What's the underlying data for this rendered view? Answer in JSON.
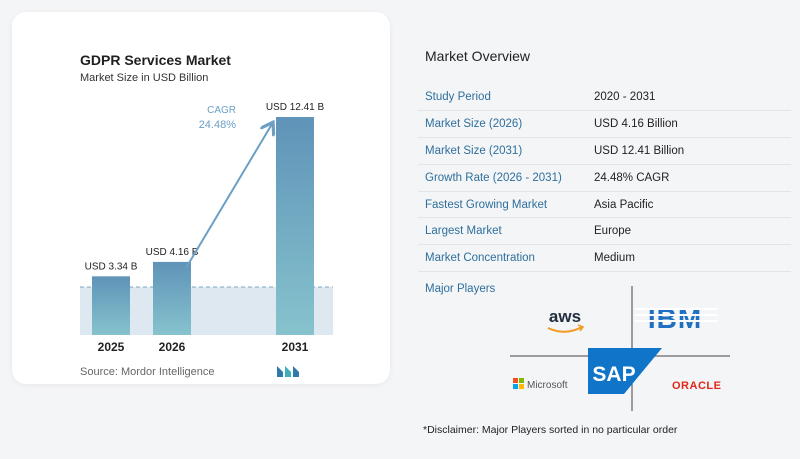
{
  "chart_data": {
    "type": "bar",
    "title": "GDPR Services Market",
    "subtitle": "Market Size in USD Billion",
    "categories": [
      "2025",
      "2026",
      "2031"
    ],
    "values": [
      3.34,
      4.16,
      12.41
    ],
    "value_labels": [
      "USD 3.34 B",
      "USD 4.16 B",
      "USD 12.41 B"
    ],
    "cagr_label": "CAGR",
    "cagr_value": "24.48%",
    "ylim": [
      0,
      12.41
    ],
    "grid": false,
    "colors": {
      "bar_top": "#5f93b8",
      "bar_bottom": "#86c3cd",
      "arrow": "#6c9fc4",
      "band": "#dde8f1",
      "dashed": "#7fa4c2",
      "cagr_text": "#6c9fc4"
    }
  },
  "source": "Source:  Mordor Intelligence",
  "source_logo_icon": "mordor-intelligence-logo",
  "overview": {
    "title": "Market Overview",
    "rows": [
      {
        "label": "Study Period",
        "value": "2020 - 2031"
      },
      {
        "label": "Market Size (2026)",
        "value": "USD 4.16 Billion"
      },
      {
        "label": "Market Size (2031)",
        "value": "USD 12.41 Billion"
      },
      {
        "label": "Growth Rate (2026 - 2031)",
        "value": "24.48% CAGR"
      },
      {
        "label": "Fastest Growing Market",
        "value": "Asia Pacific"
      },
      {
        "label": "Largest Market",
        "value": "Europe"
      },
      {
        "label": "Market Concentration",
        "value": "Medium"
      }
    ],
    "players_label": "Major Players",
    "players": [
      "aws",
      "IBM",
      "Microsoft",
      "SAP",
      "ORACLE"
    ],
    "disclaimer": "*Disclaimer: Major Players sorted in no particular order"
  }
}
